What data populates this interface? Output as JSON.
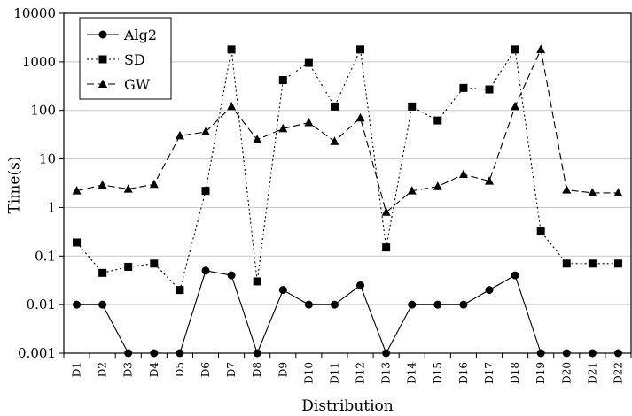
{
  "chart_data": {
    "type": "line",
    "xlabel": "Distribution",
    "ylabel": "Time(s)",
    "yscale": "log",
    "ylim": [
      0.001,
      10000
    ],
    "y_ticks": [
      "0.001",
      "0.01",
      "0.1",
      "1",
      "10",
      "100",
      "1000",
      "10000"
    ],
    "categories": [
      "D1",
      "D2",
      "D3",
      "D4",
      "D5",
      "D6",
      "D7",
      "D8",
      "D9",
      "D10",
      "D11",
      "D12",
      "D13",
      "D14",
      "D15",
      "D16",
      "D17",
      "D18",
      "D19",
      "D20",
      "D21",
      "D22"
    ],
    "legend_position": "top-left",
    "series": [
      {
        "name": "Alg2",
        "marker": "circle",
        "line": "solid",
        "values": [
          0.01,
          0.01,
          0.001,
          0.001,
          0.001,
          0.05,
          0.04,
          0.001,
          0.02,
          0.01,
          0.01,
          0.025,
          0.001,
          0.01,
          0.01,
          0.01,
          0.02,
          0.04,
          0.001,
          0.001,
          0.001,
          0.001
        ]
      },
      {
        "name": "SD",
        "marker": "square",
        "line": "dotted",
        "values": [
          0.19,
          0.045,
          0.06,
          0.07,
          0.02,
          2.2,
          1800,
          0.03,
          420,
          950,
          120,
          1800,
          0.15,
          120,
          62,
          290,
          270,
          1800,
          0.32,
          0.07,
          0.07,
          0.07
        ]
      },
      {
        "name": "GW",
        "marker": "triangle",
        "line": "dashed",
        "values": [
          2.2,
          2.9,
          2.4,
          3.0,
          30,
          36,
          120,
          25,
          42,
          56,
          23,
          70,
          0.8,
          2.2,
          2.7,
          4.8,
          3.5,
          120,
          1800,
          2.3,
          2.0,
          2.0
        ]
      }
    ]
  }
}
